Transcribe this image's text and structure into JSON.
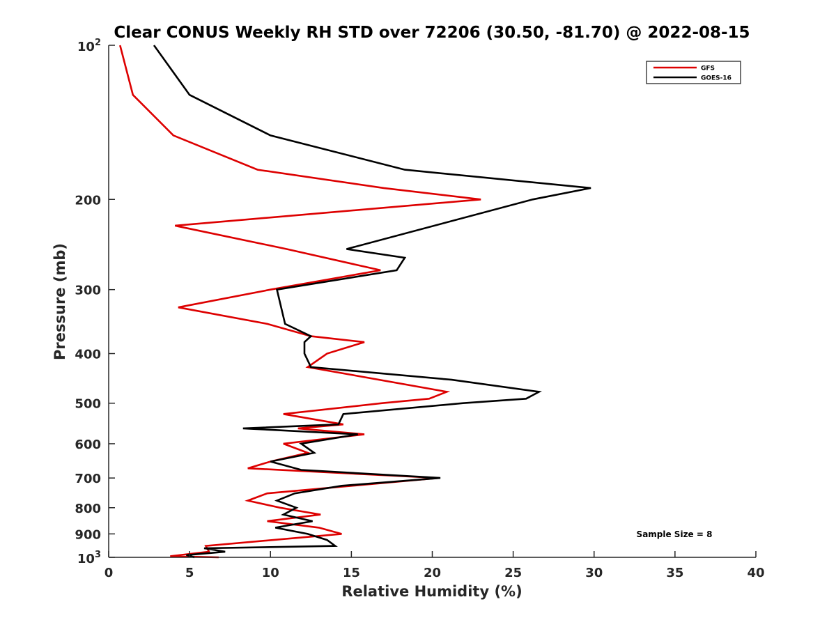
{
  "chart_data": {
    "type": "line",
    "title": "Clear CONUS Weekly RH STD over 72206 (30.50, -81.70) @ 2022-08-15",
    "xlabel": "Relative Humidity (%)",
    "ylabel": "Pressure (mb)",
    "xlim": [
      0,
      40
    ],
    "ylim": [
      100,
      1000
    ],
    "y_scale": "log",
    "y_reversed": true,
    "x_ticks": [
      "0",
      "5",
      "10",
      "15",
      "20",
      "25",
      "30",
      "35",
      "40"
    ],
    "y_ticks": [
      {
        "value": 100,
        "base": "10",
        "exp": "2"
      },
      {
        "value": 200,
        "label": "200"
      },
      {
        "value": 300,
        "label": "300"
      },
      {
        "value": 400,
        "label": "400"
      },
      {
        "value": 500,
        "label": "500"
      },
      {
        "value": 600,
        "label": "600"
      },
      {
        "value": 700,
        "label": "700"
      },
      {
        "value": 800,
        "label": "800"
      },
      {
        "value": 900,
        "label": "900"
      },
      {
        "value": 1000,
        "base": "10",
        "exp": "3"
      }
    ],
    "grid": false,
    "legend_position": "top-right",
    "annotation": "Sample Size = 8",
    "series": [
      {
        "name": "GFS",
        "color": "#dd0000",
        "points": [
          [
            0.7,
            100
          ],
          [
            1.5,
            125
          ],
          [
            4.0,
            150
          ],
          [
            9.2,
            175
          ],
          [
            17.0,
            190
          ],
          [
            23.0,
            200
          ],
          [
            4.1,
            225
          ],
          [
            11.0,
            250
          ],
          [
            16.8,
            275
          ],
          [
            10.0,
            300
          ],
          [
            4.3,
            325
          ],
          [
            9.8,
            350
          ],
          [
            12.5,
            370
          ],
          [
            15.8,
            380
          ],
          [
            13.5,
            400
          ],
          [
            12.3,
            425
          ],
          [
            20.9,
            475
          ],
          [
            19.8,
            490
          ],
          [
            16.9,
            500
          ],
          [
            10.8,
            525
          ],
          [
            14.5,
            550
          ],
          [
            11.7,
            560
          ],
          [
            15.8,
            575
          ],
          [
            10.8,
            600
          ],
          [
            12.3,
            625
          ],
          [
            10.0,
            650
          ],
          [
            8.6,
            670
          ],
          [
            20.4,
            700
          ],
          [
            9.8,
            750
          ],
          [
            8.6,
            775
          ],
          [
            10.6,
            800
          ],
          [
            13.1,
            825
          ],
          [
            9.8,
            850
          ],
          [
            13.0,
            875
          ],
          [
            14.4,
            900
          ],
          [
            6.0,
            950
          ],
          [
            6.2,
            975
          ],
          [
            3.8,
            995
          ],
          [
            6.8,
            1000
          ]
        ]
      },
      {
        "name": "GOES-16",
        "color": "#000000",
        "points": [
          [
            2.8,
            100
          ],
          [
            5.0,
            125
          ],
          [
            10.0,
            150
          ],
          [
            18.3,
            175
          ],
          [
            29.8,
            190
          ],
          [
            26.2,
            200
          ],
          [
            14.7,
            250
          ],
          [
            18.3,
            260
          ],
          [
            17.8,
            275
          ],
          [
            10.4,
            300
          ],
          [
            10.9,
            350
          ],
          [
            12.5,
            370
          ],
          [
            12.1,
            380
          ],
          [
            12.1,
            400
          ],
          [
            12.5,
            425
          ],
          [
            21.2,
            450
          ],
          [
            26.6,
            475
          ],
          [
            25.8,
            490
          ],
          [
            21.9,
            500
          ],
          [
            14.5,
            525
          ],
          [
            14.2,
            550
          ],
          [
            8.3,
            560
          ],
          [
            15.4,
            575
          ],
          [
            11.9,
            600
          ],
          [
            12.7,
            625
          ],
          [
            10.0,
            650
          ],
          [
            11.9,
            675
          ],
          [
            20.5,
            700
          ],
          [
            14.4,
            725
          ],
          [
            11.5,
            750
          ],
          [
            10.4,
            775
          ],
          [
            11.6,
            800
          ],
          [
            10.8,
            825
          ],
          [
            12.6,
            850
          ],
          [
            10.3,
            875
          ],
          [
            12.3,
            900
          ],
          [
            13.5,
            925
          ],
          [
            14.0,
            950
          ],
          [
            5.9,
            960
          ],
          [
            7.2,
            975
          ],
          [
            4.8,
            990
          ],
          [
            5.3,
            1000
          ]
        ]
      }
    ]
  }
}
